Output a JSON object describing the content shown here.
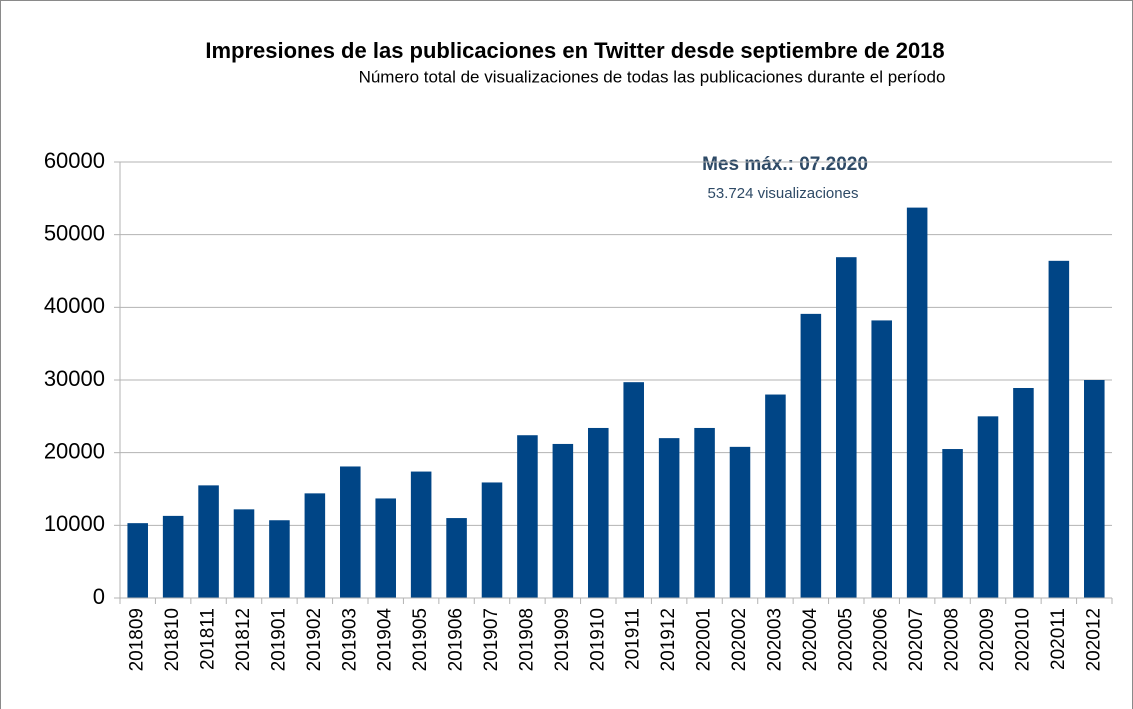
{
  "chart_data": {
    "type": "bar",
    "title": "Impresiones de las publicaciones en Twitter desde septiembre de 2018",
    "subtitle": "Número total de visualizaciones de todas las publicaciones durante el período",
    "annotations": [
      "Mes máx.: 07.2020",
      "53.724 visualizaciones"
    ],
    "categories": [
      "201809",
      "201810",
      "201811",
      "201812",
      "201901",
      "201902",
      "201903",
      "201904",
      "201905",
      "201906",
      "201907",
      "201908",
      "201909",
      "201910",
      "201911",
      "201912",
      "202001",
      "202002",
      "202003",
      "202004",
      "202005",
      "202006",
      "202007",
      "202008",
      "202009",
      "202010",
      "202011",
      "202012"
    ],
    "values": [
      10300,
      11300,
      15500,
      12200,
      10700,
      14400,
      18100,
      13700,
      17400,
      11000,
      15900,
      22400,
      21200,
      23400,
      29700,
      22000,
      23400,
      20800,
      28000,
      39100,
      46900,
      38200,
      53724,
      20500,
      25000,
      28900,
      46400,
      30000
    ],
    "color": "#004586",
    "ylim": [
      0,
      60000
    ],
    "yticks": [
      0,
      10000,
      20000,
      30000,
      40000,
      50000,
      60000
    ],
    "grid": true
  }
}
